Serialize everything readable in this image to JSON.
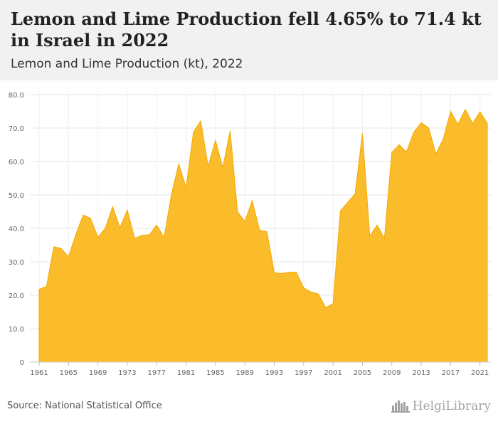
{
  "header": {
    "title": "Lemon and Lime Production fell 4.65% to 71.4 kt in Israel in 2022",
    "subtitle": "Lemon and Lime Production (kt), 2022"
  },
  "footer": {
    "source": "Source: National Statistical Office",
    "brand": "HelgiLibrary"
  },
  "colors": {
    "area_fill": "#fbbc2c",
    "area_stroke": "#f2a900",
    "grid": "#e4e4e4",
    "header_bg": "#f1f1f1"
  },
  "icons": {
    "brand_logo": "skyline-icon"
  },
  "chart_data": {
    "type": "area",
    "title": "Lemon and Lime Production fell 4.65% to 71.4 kt in Israel in 2022",
    "subtitle": "Lemon and Lime Production (kt), 2022",
    "xlabel": "",
    "ylabel": "",
    "x": [
      1961,
      1962,
      1963,
      1964,
      1965,
      1966,
      1967,
      1968,
      1969,
      1970,
      1971,
      1972,
      1973,
      1974,
      1975,
      1976,
      1977,
      1978,
      1979,
      1980,
      1981,
      1982,
      1983,
      1984,
      1985,
      1986,
      1987,
      1988,
      1989,
      1990,
      1991,
      1992,
      1993,
      1994,
      1995,
      1996,
      1997,
      1998,
      1999,
      2000,
      2001,
      2002,
      2003,
      2004,
      2005,
      2006,
      2007,
      2008,
      2009,
      2010,
      2011,
      2012,
      2013,
      2014,
      2015,
      2016,
      2017,
      2018,
      2019,
      2020,
      2021,
      2022
    ],
    "series": [
      {
        "values": [
          21.8,
          22.6,
          34.5,
          34.0,
          31.5,
          38.2,
          44.0,
          43.0,
          37.3,
          40.0,
          46.5,
          40.2,
          45.5,
          37.0,
          37.9,
          38.1,
          41.0,
          37.2,
          50.0,
          59.3,
          52.2,
          68.8,
          72.1,
          58.5,
          66.3,
          58.2,
          69.2,
          45.0,
          42.1,
          48.3,
          39.5,
          39.0,
          26.8,
          26.5,
          26.9,
          26.9,
          22.2,
          21.0,
          20.4,
          16.3,
          17.5,
          45.2,
          47.8,
          50.3,
          68.4,
          37.7,
          41.0,
          37.0,
          62.7,
          65.0,
          62.9,
          68.8,
          71.6,
          70.1,
          62.3,
          66.7,
          75.0,
          71.1,
          75.6,
          71.4,
          74.9,
          71.4
        ]
      }
    ],
    "ylim": [
      0,
      80
    ],
    "yticks": [
      0,
      10,
      20,
      30,
      40,
      50,
      60,
      70,
      80
    ],
    "ytick_labels": [
      "0",
      "10.0",
      "20.0",
      "30.0",
      "40.0",
      "50.0",
      "60.0",
      "70.0",
      "80.0"
    ],
    "xticks": [
      1961,
      1965,
      1969,
      1973,
      1977,
      1981,
      1985,
      1989,
      1993,
      1997,
      2001,
      2005,
      2009,
      2013,
      2017,
      2021
    ],
    "grid": true,
    "legend": "none"
  }
}
